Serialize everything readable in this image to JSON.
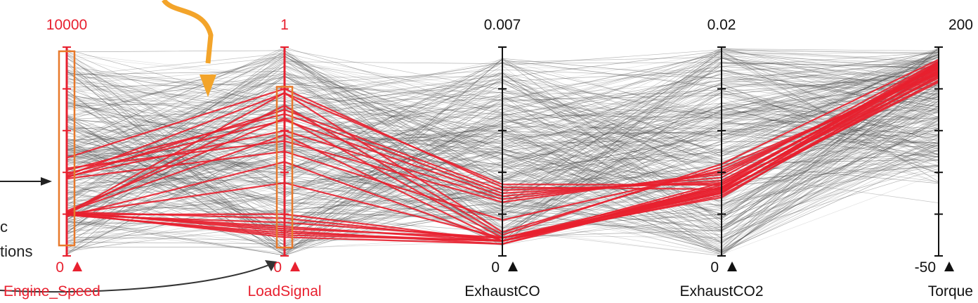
{
  "chart_data": {
    "type": "parallel-coordinates",
    "axes": [
      {
        "name": "Engine_Speed",
        "max_label": "10000",
        "min_label": "0",
        "range": [
          0,
          10000
        ],
        "selected": true
      },
      {
        "name": "LoadSignal",
        "max_label": "1",
        "min_label": "0",
        "range": [
          0,
          1
        ],
        "selected": true
      },
      {
        "name": "ExhaustCO",
        "max_label": "0.007",
        "min_label": "0",
        "range": [
          0,
          0.007
        ],
        "selected": false
      },
      {
        "name": "ExhaustCO2",
        "max_label": "0.02",
        "min_label": "0",
        "range": [
          0,
          0.02
        ],
        "selected": false
      },
      {
        "name": "Torque",
        "max_label": "200",
        "min_label": "-50",
        "range": [
          -50,
          200
        ],
        "selected": false
      }
    ],
    "brushes": [
      {
        "axis": "Engine_Speed",
        "range": [
          500,
          9800
        ]
      },
      {
        "axis": "LoadSignal",
        "range": [
          0.04,
          0.81
        ]
      }
    ],
    "highlighted_lines": [
      [
        4700,
        0.8,
        0.0023,
        0.0064,
        180
      ],
      [
        3850,
        0.78,
        0.0024,
        0.0068,
        182
      ],
      [
        3750,
        0.7,
        0.0022,
        0.007,
        178
      ],
      [
        4100,
        0.68,
        0.0021,
        0.0072,
        176
      ],
      [
        3950,
        0.65,
        0.002,
        0.0075,
        183
      ],
      [
        3800,
        0.6,
        0.0019,
        0.0078,
        175
      ],
      [
        4200,
        0.55,
        0.0018,
        0.008,
        172
      ],
      [
        3700,
        0.5,
        0.0012,
        0.0082,
        170
      ],
      [
        2050,
        0.78,
        0.0008,
        0.0085,
        168
      ],
      [
        2000,
        0.72,
        0.0007,
        0.0088,
        185
      ],
      [
        2150,
        0.66,
        0.0006,
        0.006,
        180
      ],
      [
        2100,
        0.58,
        0.0005,
        0.007,
        176
      ],
      [
        1900,
        0.45,
        0.0005,
        0.0065,
        174
      ],
      [
        2000,
        0.35,
        0.0006,
        0.0066,
        170
      ],
      [
        2050,
        0.14,
        0.0005,
        0.0058,
        165
      ],
      [
        2100,
        0.12,
        0.0004,
        0.0062,
        160
      ],
      [
        2000,
        0.1,
        0.0005,
        0.0066,
        168
      ],
      [
        1950,
        0.16,
        0.0006,
        0.0056,
        172
      ],
      [
        2100,
        0.18,
        0.0005,
        0.006,
        178
      ],
      [
        1980,
        0.2,
        0.0005,
        0.0064,
        181
      ],
      [
        2020,
        0.09,
        0.0004,
        0.0068,
        163
      ],
      [
        1960,
        0.11,
        0.0005,
        0.0063,
        158
      ],
      [
        2080,
        0.13,
        0.0006,
        0.0061,
        166
      ]
    ],
    "colors": {
      "highlight": "#e8202f",
      "context": "#4a4a4a",
      "axis": "#111111",
      "brush": "#e8792a",
      "annotation": "#f3a42a"
    }
  },
  "callout": {
    "left_text_1": "c",
    "left_text_2": "tions"
  }
}
